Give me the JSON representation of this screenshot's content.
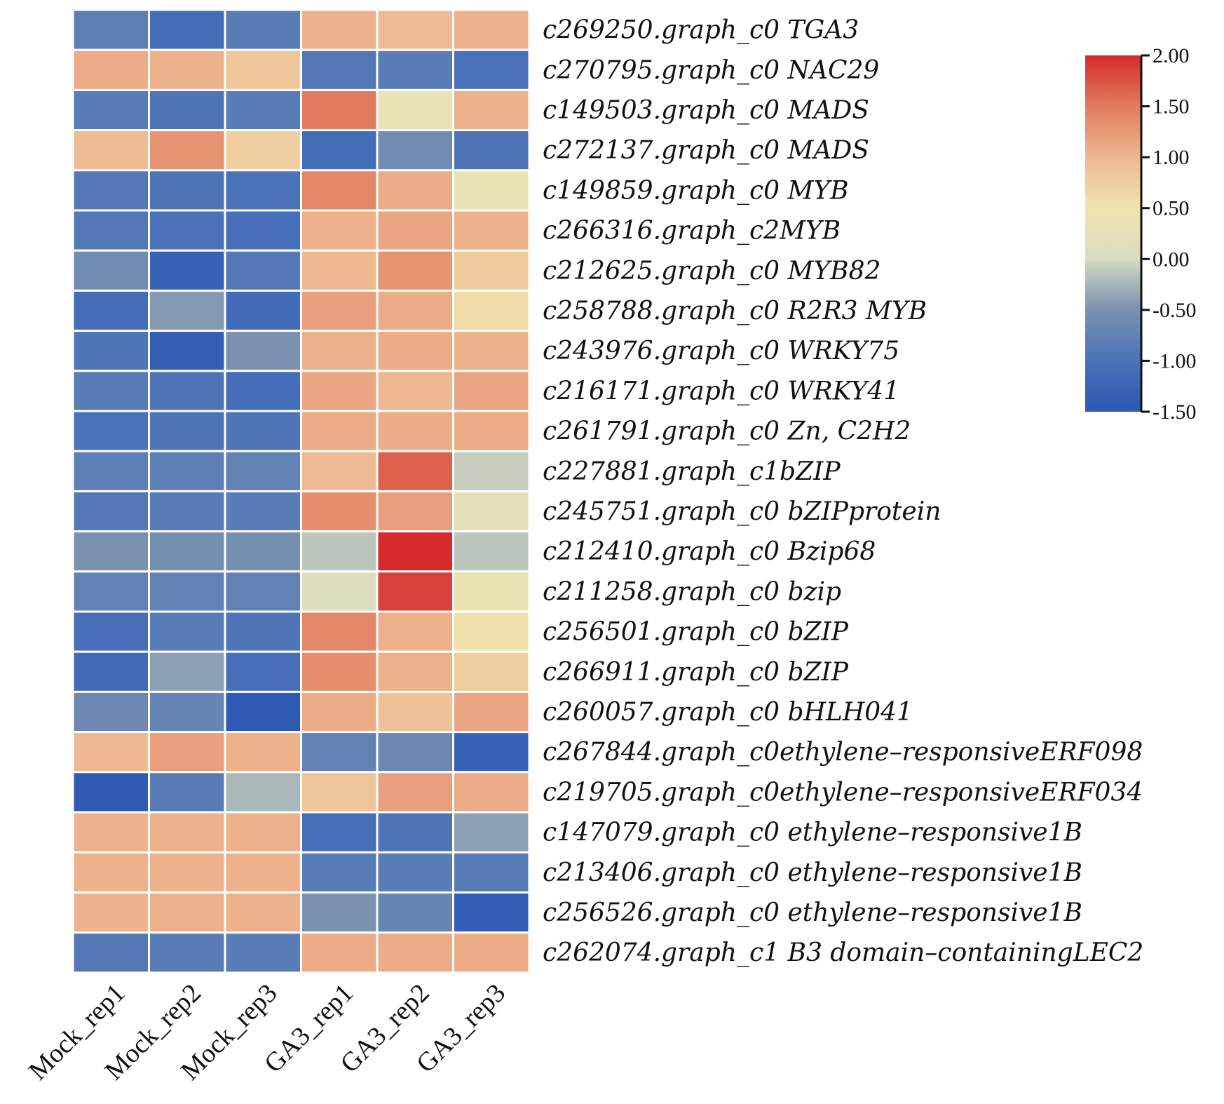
{
  "chart_data": {
    "type": "heatmap",
    "title": "",
    "columns": [
      "Mock_rep1",
      "Mock_rep2",
      "Mock_rep3",
      "GA3_rep1",
      "GA3_rep2",
      "GA3_rep3"
    ],
    "rows": [
      {
        "label": "c269250.graph_c0 TGA3",
        "values": [
          -0.8,
          -1.1,
          -0.85,
          1.05,
          0.95,
          1.05
        ]
      },
      {
        "label": "c270795.graph_c0 NAC29",
        "values": [
          1.1,
          1.05,
          0.85,
          -0.9,
          -0.85,
          -1.0
        ]
      },
      {
        "label": "c149503.graph_c0 MADS",
        "values": [
          -0.85,
          -0.95,
          -0.85,
          1.5,
          0.35,
          1.05
        ]
      },
      {
        "label": "c272137.graph_c0 MADS",
        "values": [
          0.95,
          1.3,
          0.75,
          -1.1,
          -0.6,
          -0.95
        ]
      },
      {
        "label": "c149859.graph_c0 MYB",
        "values": [
          -0.9,
          -0.95,
          -1.0,
          1.4,
          1.1,
          0.35
        ]
      },
      {
        "label": "c266316.graph_c2MYB",
        "values": [
          -0.9,
          -1.0,
          -1.05,
          1.05,
          1.15,
          1.05
        ]
      },
      {
        "label": "c212625.graph_c0 MYB82",
        "values": [
          -0.6,
          -1.3,
          -0.9,
          1.0,
          1.3,
          0.8
        ]
      },
      {
        "label": "c258788.graph_c0 R2R3 MYB",
        "values": [
          -1.1,
          -0.45,
          -1.15,
          1.2,
          1.1,
          0.6
        ]
      },
      {
        "label": "c243976.graph_c0 WRKY75",
        "values": [
          -0.95,
          -1.35,
          -0.5,
          1.05,
          1.1,
          1.05
        ]
      },
      {
        "label": "c216171.graph_c0 WRKY41",
        "values": [
          -0.85,
          -0.95,
          -1.1,
          1.15,
          1.0,
          1.15
        ]
      },
      {
        "label": "c261791.graph_c0 Zn, C2H2",
        "values": [
          -1.0,
          -0.95,
          -0.95,
          1.1,
          1.1,
          1.1
        ]
      },
      {
        "label": "c227881.graph_c1bZIP",
        "values": [
          -0.8,
          -0.8,
          -0.75,
          0.95,
          1.65,
          -0.1
        ]
      },
      {
        "label": "c245751.graph_c0 bZIPprotein",
        "values": [
          -0.9,
          -0.85,
          -0.85,
          1.35,
          1.2,
          0.2
        ]
      },
      {
        "label": "c212410.graph_c0 Bzip68",
        "values": [
          -0.5,
          -0.55,
          -0.55,
          -0.15,
          2.0,
          -0.15
        ]
      },
      {
        "label": "c211258.graph_c0 bzip",
        "values": [
          -0.75,
          -0.75,
          -0.75,
          0.1,
          1.85,
          0.4
        ]
      },
      {
        "label": "c256501.graph_c0 bZIP",
        "values": [
          -1.05,
          -0.85,
          -0.95,
          1.4,
          1.05,
          0.55
        ]
      },
      {
        "label": "c266911.graph_c0 bZIP",
        "values": [
          -1.15,
          -0.4,
          -1.05,
          1.35,
          1.05,
          0.75
        ]
      },
      {
        "label": "c260057.graph_c0 bHLH041",
        "values": [
          -0.65,
          -0.7,
          -1.45,
          1.1,
          0.9,
          1.15
        ]
      },
      {
        "label": "c267844.graph_c0ethylene–responsiveERF098",
        "values": [
          1.0,
          1.2,
          1.05,
          -0.75,
          -0.65,
          -1.3
        ]
      },
      {
        "label": "c219705.graph_c0ethylene–responsiveERF034",
        "values": [
          -1.45,
          -0.85,
          -0.25,
          0.85,
          1.2,
          1.1
        ]
      },
      {
        "label": "c147079.graph_c0 ethylene–responsive1B",
        "values": [
          1.05,
          1.05,
          1.05,
          -1.05,
          -0.95,
          -0.4
        ]
      },
      {
        "label": "c213406.graph_c0 ethylene–responsive1B",
        "values": [
          1.05,
          1.05,
          1.05,
          -0.85,
          -0.85,
          -0.85
        ]
      },
      {
        "label": "c256526.graph_c0 ethylene–responsive1B",
        "values": [
          1.05,
          1.05,
          1.05,
          -0.5,
          -0.7,
          -1.4
        ]
      },
      {
        "label": "c262074.graph_c1 B3 domain–containingLEC2",
        "values": [
          -0.9,
          -0.85,
          -0.85,
          1.1,
          1.1,
          1.1
        ]
      }
    ],
    "colorbar": {
      "range": [
        -1.5,
        2.0
      ],
      "ticks": [
        "2.00",
        "1.50",
        "1.00",
        "0.50",
        "0.00",
        "-0.50",
        "-1.00",
        "-1.50"
      ],
      "colors": [
        "#2c57b3",
        "#6c8ec0",
        "#d9dcc2",
        "#f0e4ae",
        "#eeb891",
        "#de4b40",
        "#d42a2a"
      ]
    }
  }
}
